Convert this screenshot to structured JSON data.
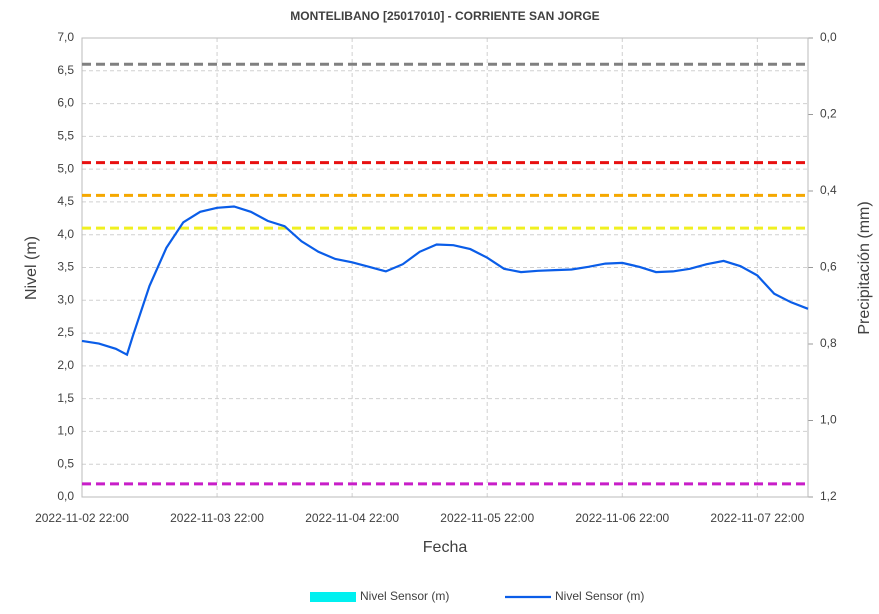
{
  "chart_data": {
    "type": "line",
    "title": "MONTELIBANO [25017010] - CORRIENTE SAN JORGE",
    "xlabel": "Fecha",
    "ylabel": "Nivel (m)",
    "y2label": "Precipitación (mm)",
    "x": [
      "2022-11-02 22:00",
      "2022-11-03 01:00",
      "2022-11-03 04:00",
      "2022-11-03 06:00",
      "2022-11-03 07:00",
      "2022-11-03 10:00",
      "2022-11-03 13:00",
      "2022-11-03 16:00",
      "2022-11-03 19:00",
      "2022-11-03 22:00",
      "2022-11-04 01:00",
      "2022-11-04 04:00",
      "2022-11-04 07:00",
      "2022-11-04 10:00",
      "2022-11-04 13:00",
      "2022-11-04 16:00",
      "2022-11-04 19:00",
      "2022-11-04 22:00",
      "2022-11-05 01:00",
      "2022-11-05 04:00",
      "2022-11-05 07:00",
      "2022-11-05 10:00",
      "2022-11-05 13:00",
      "2022-11-05 16:00",
      "2022-11-05 19:00",
      "2022-11-05 22:00",
      "2022-11-06 01:00",
      "2022-11-06 04:00",
      "2022-11-06 07:00",
      "2022-11-06 10:00",
      "2022-11-06 13:00",
      "2022-11-06 16:00",
      "2022-11-06 19:00",
      "2022-11-06 22:00",
      "2022-11-07 01:00",
      "2022-11-07 04:00",
      "2022-11-07 07:00",
      "2022-11-07 10:00",
      "2022-11-07 13:00",
      "2022-11-07 16:00",
      "2022-11-07 19:00",
      "2022-11-07 22:00",
      "2022-11-08 01:00",
      "2022-11-08 04:00",
      "2022-11-08 07:00"
    ],
    "series": [
      {
        "name": "Nivel Sensor (m)",
        "color": "#00f0f0",
        "type": "bar",
        "axis": "y2",
        "values": [
          null,
          null,
          null,
          null,
          null,
          null,
          null,
          null,
          null,
          null,
          null,
          null,
          null,
          null,
          null,
          null,
          null,
          null,
          null,
          null,
          null,
          null,
          null,
          null,
          null,
          null,
          null,
          null,
          null,
          null,
          null,
          null,
          null,
          null,
          null,
          null,
          null,
          null,
          null,
          null,
          null,
          null,
          null,
          null,
          null
        ]
      },
      {
        "name": "Nivel Sensor (m)",
        "color": "#0a5de8",
        "type": "line",
        "values": [
          2.38,
          2.34,
          2.26,
          2.17,
          2.45,
          3.22,
          3.8,
          4.19,
          4.35,
          4.41,
          4.43,
          4.35,
          4.21,
          4.13,
          3.9,
          3.74,
          3.63,
          3.58,
          3.51,
          3.44,
          3.55,
          3.74,
          3.85,
          3.84,
          3.78,
          3.65,
          3.48,
          3.43,
          3.45,
          3.46,
          3.47,
          3.51,
          3.56,
          3.57,
          3.51,
          3.43,
          3.44,
          3.48,
          3.55,
          3.6,
          3.52,
          3.38,
          3.1,
          2.97,
          2.87
        ]
      }
    ],
    "thresholds": [
      {
        "value": 6.6,
        "color": "#808080"
      },
      {
        "value": 5.1,
        "color": "#e81010"
      },
      {
        "value": 4.6,
        "color": "#f5a800"
      },
      {
        "value": 4.1,
        "color": "#f0f020"
      },
      {
        "value": 0.2,
        "color": "#c81ec8"
      }
    ],
    "xlim": [
      "2022-11-02 22:00",
      "2022-11-08 07:00"
    ],
    "xticks": [
      "2022-11-02 22:00",
      "2022-11-03 22:00",
      "2022-11-04 22:00",
      "2022-11-05 22:00",
      "2022-11-06 22:00",
      "2022-11-07 22:00"
    ],
    "ylim": [
      0,
      7
    ],
    "yticks": [
      {
        "value": 0,
        "label": "0,0"
      },
      {
        "value": 0.5,
        "label": "0,5"
      },
      {
        "value": 1,
        "label": "1,0"
      },
      {
        "value": 1.5,
        "label": "1,5"
      },
      {
        "value": 2,
        "label": "2,0"
      },
      {
        "value": 2.5,
        "label": "2,5"
      },
      {
        "value": 3,
        "label": "3,0"
      },
      {
        "value": 3.5,
        "label": "3,5"
      },
      {
        "value": 4,
        "label": "4,0"
      },
      {
        "value": 4.5,
        "label": "4,5"
      },
      {
        "value": 5,
        "label": "5,0"
      },
      {
        "value": 5.5,
        "label": "5,5"
      },
      {
        "value": 6,
        "label": "6,0"
      },
      {
        "value": 6.5,
        "label": "6,5"
      },
      {
        "value": 7,
        "label": "7,0"
      }
    ],
    "y2lim": [
      0,
      1.2
    ],
    "y2_inverted": true,
    "y2ticks": [
      {
        "value": 0,
        "label": "0,0"
      },
      {
        "value": 0.2,
        "label": "0,2"
      },
      {
        "value": 0.4,
        "label": "0,4"
      },
      {
        "value": 0.6,
        "label": "0,6"
      },
      {
        "value": 0.8,
        "label": "0,8"
      },
      {
        "value": 1,
        "label": "1,0"
      },
      {
        "value": 1.2,
        "label": "1,2"
      }
    ],
    "grid": true,
    "legend": "bottom"
  }
}
